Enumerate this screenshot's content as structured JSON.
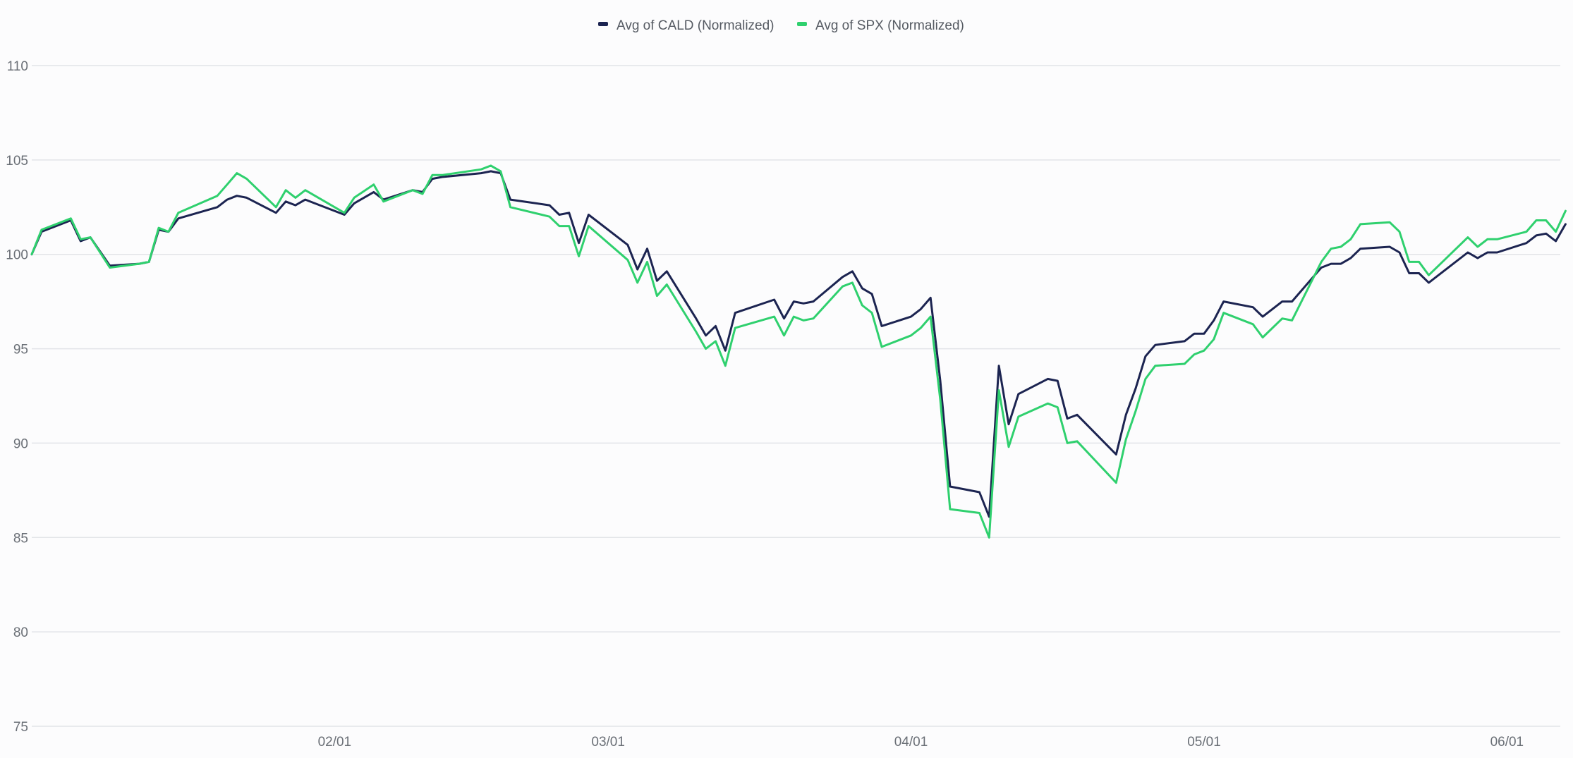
{
  "chart_data": {
    "type": "line",
    "title": "",
    "xlabel": "",
    "ylabel": "",
    "ylim": [
      75,
      110
    ],
    "yticks": [
      75,
      80,
      85,
      90,
      95,
      100,
      105,
      110
    ],
    "xticks": [
      {
        "label": "02/01",
        "x": 41
      },
      {
        "label": "03/01",
        "x": 69
      },
      {
        "label": "04/01",
        "x": 100
      },
      {
        "label": "05/01",
        "x": 130
      },
      {
        "label": "06/01",
        "x": 161
      }
    ],
    "xlim": [
      10,
      166
    ],
    "grid": true,
    "legend_position": "top-center",
    "series": [
      {
        "name": "Avg of CALD (Normalized)",
        "color": "#1c2451",
        "points": [
          [
            10,
            100.0
          ],
          [
            11,
            101.2
          ],
          [
            14,
            101.8
          ],
          [
            15,
            100.7
          ],
          [
            16,
            100.9
          ],
          [
            18,
            99.4
          ],
          [
            21,
            99.5
          ],
          [
            22,
            99.6
          ],
          [
            23,
            101.3
          ],
          [
            24,
            101.2
          ],
          [
            25,
            101.9
          ],
          [
            29,
            102.5
          ],
          [
            30,
            102.9
          ],
          [
            31,
            103.1
          ],
          [
            32,
            103.0
          ],
          [
            35,
            102.2
          ],
          [
            36,
            102.8
          ],
          [
            37,
            102.6
          ],
          [
            38,
            102.9
          ],
          [
            42,
            102.1
          ],
          [
            43,
            102.7
          ],
          [
            45,
            103.3
          ],
          [
            46,
            102.9
          ],
          [
            49,
            103.4
          ],
          [
            50,
            103.3
          ],
          [
            51,
            104.0
          ],
          [
            52,
            104.1
          ],
          [
            56,
            104.3
          ],
          [
            57,
            104.4
          ],
          [
            58,
            104.3
          ],
          [
            59,
            102.9
          ],
          [
            63,
            102.6
          ],
          [
            64,
            102.1
          ],
          [
            65,
            102.2
          ],
          [
            66,
            100.6
          ],
          [
            67,
            102.1
          ],
          [
            71,
            100.5
          ],
          [
            72,
            99.2
          ],
          [
            73,
            100.3
          ],
          [
            74,
            98.6
          ],
          [
            75,
            99.1
          ],
          [
            78,
            96.6
          ],
          [
            79,
            95.7
          ],
          [
            80,
            96.2
          ],
          [
            81,
            94.9
          ],
          [
            82,
            96.9
          ],
          [
            86,
            97.6
          ],
          [
            87,
            96.6
          ],
          [
            88,
            97.5
          ],
          [
            89,
            97.4
          ],
          [
            90,
            97.5
          ],
          [
            93,
            98.8
          ],
          [
            94,
            99.1
          ],
          [
            95,
            98.2
          ],
          [
            96,
            97.9
          ],
          [
            97,
            96.2
          ],
          [
            100,
            96.7
          ],
          [
            101,
            97.1
          ],
          [
            102,
            97.7
          ],
          [
            103,
            93.3
          ],
          [
            104,
            87.7
          ],
          [
            107,
            87.4
          ],
          [
            108,
            86.1
          ],
          [
            109,
            94.1
          ],
          [
            110,
            91.0
          ],
          [
            111,
            92.6
          ],
          [
            114,
            93.4
          ],
          [
            115,
            93.3
          ],
          [
            116,
            91.3
          ],
          [
            117,
            91.5
          ],
          [
            121,
            89.4
          ],
          [
            122,
            91.5
          ],
          [
            123,
            92.9
          ],
          [
            124,
            94.6
          ],
          [
            125,
            95.2
          ],
          [
            128,
            95.4
          ],
          [
            129,
            95.8
          ],
          [
            130,
            95.8
          ],
          [
            131,
            96.5
          ],
          [
            132,
            97.5
          ],
          [
            135,
            97.2
          ],
          [
            136,
            96.7
          ],
          [
            138,
            97.5
          ],
          [
            139,
            97.5
          ],
          [
            142,
            99.3
          ],
          [
            143,
            99.5
          ],
          [
            144,
            99.5
          ],
          [
            145,
            99.8
          ],
          [
            146,
            100.3
          ],
          [
            149,
            100.4
          ],
          [
            150,
            100.1
          ],
          [
            151,
            99.0
          ],
          [
            152,
            99.0
          ],
          [
            153,
            98.5
          ],
          [
            157,
            100.1
          ],
          [
            158,
            99.8
          ],
          [
            159,
            100.1
          ],
          [
            160,
            100.1
          ],
          [
            163,
            100.6
          ],
          [
            164,
            101.0
          ],
          [
            165,
            101.1
          ],
          [
            166,
            100.7
          ],
          [
            167,
            101.6
          ]
        ]
      },
      {
        "name": "Avg of SPX (Normalized)",
        "color": "#2fd06e",
        "points": [
          [
            10,
            100.0
          ],
          [
            11,
            101.3
          ],
          [
            14,
            101.9
          ],
          [
            15,
            100.8
          ],
          [
            16,
            100.9
          ],
          [
            18,
            99.3
          ],
          [
            21,
            99.5
          ],
          [
            22,
            99.6
          ],
          [
            23,
            101.4
          ],
          [
            24,
            101.2
          ],
          [
            25,
            102.2
          ],
          [
            29,
            103.1
          ],
          [
            30,
            103.7
          ],
          [
            31,
            104.3
          ],
          [
            32,
            104.0
          ],
          [
            35,
            102.5
          ],
          [
            36,
            103.4
          ],
          [
            37,
            103.0
          ],
          [
            38,
            103.4
          ],
          [
            42,
            102.2
          ],
          [
            43,
            103.0
          ],
          [
            45,
            103.7
          ],
          [
            46,
            102.8
          ],
          [
            49,
            103.4
          ],
          [
            50,
            103.2
          ],
          [
            51,
            104.2
          ],
          [
            52,
            104.2
          ],
          [
            56,
            104.5
          ],
          [
            57,
            104.7
          ],
          [
            58,
            104.4
          ],
          [
            59,
            102.5
          ],
          [
            63,
            102.0
          ],
          [
            64,
            101.5
          ],
          [
            65,
            101.5
          ],
          [
            66,
            99.9
          ],
          [
            67,
            101.5
          ],
          [
            71,
            99.7
          ],
          [
            72,
            98.5
          ],
          [
            73,
            99.6
          ],
          [
            74,
            97.8
          ],
          [
            75,
            98.4
          ],
          [
            78,
            95.9
          ],
          [
            79,
            95.0
          ],
          [
            80,
            95.4
          ],
          [
            81,
            94.1
          ],
          [
            82,
            96.1
          ],
          [
            86,
            96.7
          ],
          [
            87,
            95.7
          ],
          [
            88,
            96.7
          ],
          [
            89,
            96.5
          ],
          [
            90,
            96.6
          ],
          [
            93,
            98.3
          ],
          [
            94,
            98.5
          ],
          [
            95,
            97.3
          ],
          [
            96,
            96.9
          ],
          [
            97,
            95.1
          ],
          [
            100,
            95.7
          ],
          [
            101,
            96.1
          ],
          [
            102,
            96.7
          ],
          [
            103,
            92.3
          ],
          [
            104,
            86.5
          ],
          [
            107,
            86.3
          ],
          [
            108,
            85.0
          ],
          [
            109,
            92.8
          ],
          [
            110,
            89.8
          ],
          [
            111,
            91.4
          ],
          [
            114,
            92.1
          ],
          [
            115,
            91.9
          ],
          [
            116,
            90.0
          ],
          [
            117,
            90.1
          ],
          [
            121,
            87.9
          ],
          [
            122,
            90.2
          ],
          [
            123,
            91.7
          ],
          [
            124,
            93.4
          ],
          [
            125,
            94.1
          ],
          [
            128,
            94.2
          ],
          [
            129,
            94.7
          ],
          [
            130,
            94.9
          ],
          [
            131,
            95.5
          ],
          [
            132,
            96.9
          ],
          [
            135,
            96.3
          ],
          [
            136,
            95.6
          ],
          [
            138,
            96.6
          ],
          [
            139,
            96.5
          ],
          [
            142,
            99.6
          ],
          [
            143,
            100.3
          ],
          [
            144,
            100.4
          ],
          [
            145,
            100.8
          ],
          [
            146,
            101.6
          ],
          [
            149,
            101.7
          ],
          [
            150,
            101.2
          ],
          [
            151,
            99.6
          ],
          [
            152,
            99.6
          ],
          [
            153,
            98.9
          ],
          [
            157,
            100.9
          ],
          [
            158,
            100.4
          ],
          [
            159,
            100.8
          ],
          [
            160,
            100.8
          ],
          [
            163,
            101.2
          ],
          [
            164,
            101.8
          ],
          [
            165,
            101.8
          ],
          [
            166,
            101.2
          ],
          [
            167,
            102.3
          ]
        ]
      }
    ]
  }
}
